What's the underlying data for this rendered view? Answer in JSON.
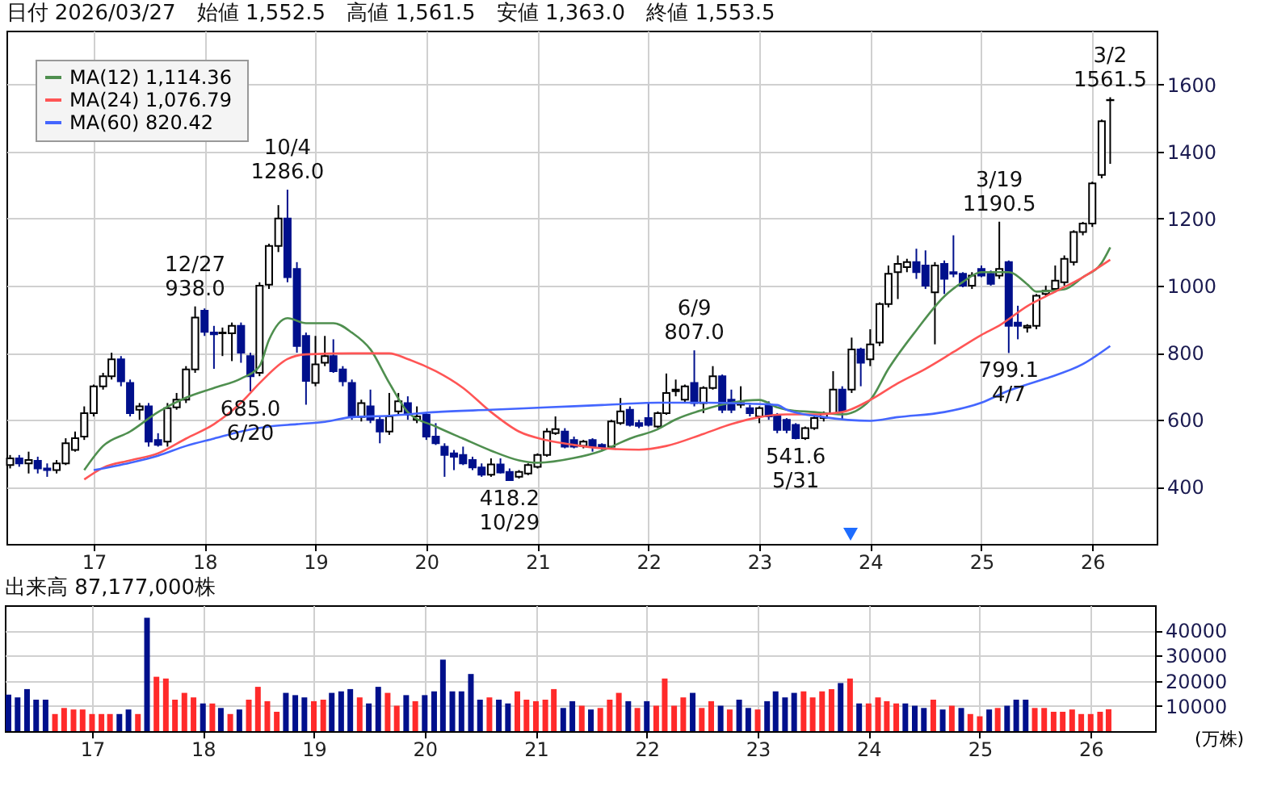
{
  "chart_data": [
    {
      "type": "candlestick",
      "title": "日付 2026/03/27　始値 1,552.5　高値 1,561.5　安値 1,363.0　終値 1,553.5",
      "x": [
        "2016-04",
        "2016-05",
        "2016-06",
        "2016-07",
        "2016-08",
        "2016-09",
        "2016-10",
        "2016-11",
        "2016-12",
        "2017-01",
        "2017-02",
        "2017-03",
        "2017-04",
        "2017-05",
        "2017-06",
        "2017-07",
        "2017-08",
        "2017-09",
        "2017-10",
        "2017-11",
        "2017-12",
        "2018-01",
        "2018-02",
        "2018-03",
        "2018-04",
        "2018-05",
        "2018-06",
        "2018-07",
        "2018-08",
        "2018-09",
        "2018-10",
        "2018-11",
        "2018-12",
        "2019-01",
        "2019-02",
        "2019-03",
        "2019-04",
        "2019-05",
        "2019-06",
        "2019-07",
        "2019-08",
        "2019-09",
        "2019-10",
        "2019-11",
        "2019-12",
        "2020-01",
        "2020-02",
        "2020-03",
        "2020-04",
        "2020-05",
        "2020-06",
        "2020-07",
        "2020-08",
        "2020-09",
        "2020-10",
        "2020-11",
        "2020-12",
        "2021-01",
        "2021-02",
        "2021-03",
        "2021-04",
        "2021-05",
        "2021-06",
        "2021-07",
        "2021-08",
        "2021-09",
        "2021-10",
        "2021-11",
        "2021-12",
        "2022-01",
        "2022-02",
        "2022-03",
        "2022-04",
        "2022-05",
        "2022-06",
        "2022-07",
        "2022-08",
        "2022-09",
        "2022-10",
        "2022-11",
        "2022-12",
        "2023-01",
        "2023-02",
        "2023-03",
        "2023-04",
        "2023-05",
        "2023-06",
        "2023-07",
        "2023-08",
        "2023-09",
        "2023-10",
        "2023-11",
        "2023-12",
        "2024-01",
        "2024-02",
        "2024-03",
        "2024-04",
        "2024-05",
        "2024-06",
        "2024-07",
        "2024-08",
        "2024-09",
        "2024-10",
        "2024-11",
        "2024-12",
        "2025-01",
        "2025-02",
        "2025-03",
        "2025-04",
        "2025-05",
        "2025-06",
        "2025-07",
        "2025-08",
        "2025-09",
        "2025-10",
        "2025-11",
        "2025-12",
        "2026-01",
        "2026-02",
        "2026-03"
      ],
      "ohlc": [
        [
          465,
          495,
          455,
          485
        ],
        [
          485,
          495,
          460,
          470
        ],
        [
          470,
          505,
          440,
          480
        ],
        [
          478,
          490,
          440,
          455
        ],
        [
          455,
          470,
          430,
          450
        ],
        [
          450,
          480,
          440,
          470
        ],
        [
          470,
          545,
          465,
          530
        ],
        [
          510,
          565,
          505,
          545
        ],
        [
          550,
          640,
          540,
          620
        ],
        [
          620,
          705,
          610,
          700
        ],
        [
          700,
          740,
          690,
          730
        ],
        [
          730,
          800,
          720,
          780
        ],
        [
          780,
          790,
          700,
          715
        ],
        [
          710,
          720,
          610,
          620
        ],
        [
          630,
          650,
          600,
          640
        ],
        [
          640,
          650,
          520,
          535
        ],
        [
          540,
          560,
          520,
          525
        ],
        [
          535,
          650,
          520,
          635
        ],
        [
          637,
          680,
          630,
          660
        ],
        [
          660,
          760,
          650,
          750
        ],
        [
          750,
          938.0,
          740,
          905
        ],
        [
          925,
          932,
          850,
          862
        ],
        [
          860,
          880,
          752,
          855
        ],
        [
          858,
          875,
          790,
          860
        ],
        [
          858,
          890,
          775,
          880
        ],
        [
          880,
          890,
          770,
          800
        ],
        [
          790,
          800,
          685.0,
          730
        ],
        [
          740,
          1010,
          730,
          1000
        ],
        [
          1003,
          1125,
          990,
          1118
        ],
        [
          1118,
          1240,
          1100,
          1200
        ],
        [
          1200,
          1286.0,
          1010,
          1025
        ],
        [
          1050,
          1070,
          800,
          820
        ],
        [
          850,
          860,
          645,
          716
        ],
        [
          710,
          850,
          700,
          765
        ],
        [
          770,
          850,
          760,
          790
        ],
        [
          790,
          840,
          740,
          745
        ],
        [
          750,
          760,
          700,
          715
        ],
        [
          710,
          720,
          600,
          610
        ],
        [
          608,
          660,
          595,
          650
        ],
        [
          640,
          690,
          590,
          600
        ],
        [
          600,
          610,
          530,
          565
        ],
        [
          565,
          680,
          555,
          610
        ],
        [
          625,
          680,
          615,
          655
        ],
        [
          650,
          670,
          600,
          615
        ],
        [
          600,
          640,
          590,
          610
        ],
        [
          615,
          620,
          540,
          550
        ],
        [
          550,
          590,
          525,
          530
        ],
        [
          520,
          530,
          430,
          495
        ],
        [
          500,
          510,
          450,
          490
        ],
        [
          495,
          520,
          465,
          470
        ],
        [
          480,
          490,
          450,
          458
        ],
        [
          458,
          470,
          430,
          436
        ],
        [
          436,
          485,
          430,
          467
        ],
        [
          467,
          485,
          440,
          443
        ],
        [
          445,
          455,
          418.2,
          420
        ],
        [
          430,
          450,
          425,
          445
        ],
        [
          440,
          470,
          435,
          465
        ],
        [
          460,
          500,
          455,
          495
        ],
        [
          495,
          575,
          490,
          565
        ],
        [
          560,
          610,
          555,
          572
        ],
        [
          565,
          575,
          515,
          520
        ],
        [
          540,
          550,
          515,
          520
        ],
        [
          522,
          540,
          515,
          535
        ],
        [
          540,
          545,
          505,
          520
        ],
        [
          525,
          530,
          510,
          517
        ],
        [
          520,
          600,
          515,
          595
        ],
        [
          590,
          665,
          585,
          625
        ],
        [
          630,
          640,
          580,
          585
        ],
        [
          590,
          600,
          575,
          582
        ],
        [
          605,
          650,
          580,
          585
        ],
        [
          580,
          625,
          575,
          620
        ],
        [
          620,
          738,
          615,
          680
        ],
        [
          685,
          720,
          670,
          690
        ],
        [
          660,
          705,
          650,
          700
        ],
        [
          710,
          807.0,
          640,
          650
        ],
        [
          650,
          700,
          620,
          695
        ],
        [
          695,
          760,
          690,
          730
        ],
        [
          730,
          735,
          620,
          630
        ],
        [
          660,
          690,
          620,
          630
        ],
        [
          645,
          700,
          635,
          650
        ],
        [
          635,
          645,
          610,
          620
        ],
        [
          610,
          640,
          590,
          635
        ],
        [
          645,
          655,
          600,
          610
        ],
        [
          615,
          620,
          560,
          570
        ],
        [
          600,
          605,
          560,
          570
        ],
        [
          585,
          590,
          541.6,
          545
        ],
        [
          545,
          580,
          540,
          575
        ],
        [
          575,
          610,
          570,
          605
        ],
        [
          605,
          625,
          595,
          620
        ],
        [
          620,
          745,
          615,
          690
        ],
        [
          690,
          700,
          600,
          625
        ],
        [
          690,
          845,
          680,
          810
        ],
        [
          810,
          815,
          700,
          770
        ],
        [
          780,
          870,
          760,
          825
        ],
        [
          830,
          950,
          820,
          945
        ],
        [
          945,
          1060,
          935,
          1035
        ],
        [
          1040,
          1090,
          960,
          1065
        ],
        [
          1055,
          1080,
          1040,
          1070
        ],
        [
          1070,
          1110,
          1020,
          1040
        ],
        [
          1060,
          1105,
          990,
          1000
        ],
        [
          980,
          1070,
          825,
          1060
        ],
        [
          1065,
          1075,
          975,
          1020
        ],
        [
          1040,
          1150,
          1025,
          1035
        ],
        [
          1035,
          1040,
          995,
          1000
        ],
        [
          1000,
          1040,
          990,
          1030
        ],
        [
          1050,
          1060,
          1025,
          1030
        ],
        [
          1035,
          1045,
          1000,
          1005
        ],
        [
          1030,
          1190.5,
          1020,
          1050
        ],
        [
          1070,
          1075,
          799.1,
          880
        ],
        [
          890,
          940,
          840,
          880
        ],
        [
          875,
          885,
          860,
          880
        ],
        [
          880,
          975,
          870,
          970
        ],
        [
          975,
          1000,
          970,
          985
        ],
        [
          990,
          1060,
          980,
          1015
        ],
        [
          1010,
          1090,
          1000,
          1080
        ],
        [
          1070,
          1165,
          1060,
          1160
        ],
        [
          1160,
          1190,
          1150,
          1185
        ],
        [
          1185,
          1310,
          1175,
          1305
        ],
        [
          1330,
          1495,
          1320,
          1490
        ],
        [
          1552.5,
          1561.5,
          1363.0,
          1553.5
        ]
      ],
      "series": [
        {
          "type": "line",
          "name": "MA(12)  1,114.36",
          "color": "#4f8f4f",
          "x": [
            "2016-12",
            "2017-02",
            "2017-05",
            "2017-08",
            "2017-11",
            "2018-02",
            "2018-05",
            "2018-07",
            "2018-08",
            "2018-10",
            "2018-12",
            "2019-03",
            "2019-05",
            "2019-07",
            "2019-09",
            "2019-11",
            "2020-02",
            "2020-05",
            "2020-08",
            "2020-11",
            "2021-01",
            "2021-05",
            "2021-08",
            "2021-11",
            "2022-02",
            "2022-04",
            "2022-07",
            "2022-10",
            "2023-01",
            "2023-03",
            "2023-04",
            "2023-07",
            "2023-10",
            "2024-01",
            "2024-03",
            "2024-06",
            "2024-09",
            "2024-11",
            "2025-01",
            "2025-04",
            "2025-06",
            "2025-07",
            "2025-10",
            "2025-12",
            "2026-02",
            "2026-03"
          ],
          "values": [
            450,
            522,
            565,
            623,
            666,
            695,
            723,
            760,
            838,
            903,
            888,
            888,
            860,
            810,
            710,
            623,
            580,
            544,
            508,
            479,
            472,
            486,
            508,
            544,
            572,
            601,
            630,
            651,
            659,
            637,
            630,
            623,
            616,
            659,
            752,
            867,
            968,
            1011,
            1040,
            1040,
            1004,
            982,
            989,
            1025,
            1068,
            1114
          ]
        },
        {
          "type": "line",
          "name": "MA(24)  1,076.79",
          "color": "#ff5555",
          "x": [
            "2016-12",
            "2017-02",
            "2017-05",
            "2017-08",
            "2017-11",
            "2018-02",
            "2018-05",
            "2018-07",
            "2018-10",
            "2018-12",
            "2019-05",
            "2019-09",
            "2019-11",
            "2020-02",
            "2020-05",
            "2020-08",
            "2020-11",
            "2021-02",
            "2021-05",
            "2021-08",
            "2021-12",
            "2022-03",
            "2022-07",
            "2022-10",
            "2023-01",
            "2023-04",
            "2023-07",
            "2023-10",
            "2024-01",
            "2024-04",
            "2024-07",
            "2024-10",
            "2025-01",
            "2025-03",
            "2025-06",
            "2025-09",
            "2025-12",
            "2026-03"
          ],
          "values": [
            422,
            457,
            479,
            500,
            544,
            587,
            651,
            709,
            781,
            795,
            798,
            798,
            781,
            745,
            695,
            623,
            565,
            539,
            525,
            515,
            511,
            522,
            558,
            587,
            608,
            616,
            616,
            623,
            659,
            709,
            752,
            802,
            853,
            881,
            939,
            982,
            1025,
            1077
          ]
        },
        {
          "type": "line",
          "name": "MA(60)  820.42",
          "color": "#4466ff",
          "x": [
            "2017-01",
            "2017-05",
            "2017-08",
            "2017-11",
            "2018-02",
            "2018-05",
            "2018-08",
            "2018-11",
            "2019-02",
            "2019-05",
            "2019-09",
            "2020-02",
            "2020-08",
            "2021-02",
            "2021-08",
            "2022-02",
            "2022-07",
            "2022-12",
            "2023-03",
            "2023-04",
            "2023-08",
            "2024-01",
            "2024-04",
            "2024-09",
            "2025-01",
            "2025-04",
            "2025-08",
            "2025-12",
            "2026-03"
          ],
          "values": [
            450,
            472,
            493,
            522,
            544,
            565,
            580,
            587,
            594,
            608,
            612,
            623,
            630,
            637,
            644,
            651,
            651,
            648,
            644,
            630,
            608,
            597,
            608,
            623,
            651,
            687,
            723,
            766,
            820
          ]
        }
      ],
      "xlim": [
        "2016-03-20",
        "2026-08-01"
      ],
      "xticks": [
        {
          "value": "2017-01",
          "label": "17"
        },
        {
          "value": "2018-01",
          "label": "18"
        },
        {
          "value": "2019-01",
          "label": "19"
        },
        {
          "value": "2020-01",
          "label": "20"
        },
        {
          "value": "2021-01",
          "label": "21"
        },
        {
          "value": "2022-01",
          "label": "22"
        },
        {
          "value": "2023-01",
          "label": "23"
        },
        {
          "value": "2024-01",
          "label": "24"
        },
        {
          "value": "2025-01",
          "label": "25"
        },
        {
          "value": "2026-01",
          "label": "26"
        }
      ],
      "ylim": [
        230,
        1760
      ],
      "yticks": [
        400,
        600,
        800,
        1000,
        1200,
        1400,
        1600
      ],
      "grid": true,
      "legend": "top left",
      "annotations": [
        {
          "text": "12/27",
          "x": "2017-12",
          "y": 938.0
        },
        {
          "text": "938.0",
          "x": "2017-12",
          "y": 938.0
        },
        {
          "text": "10/4",
          "x": "2018-10",
          "y": 1286.0
        },
        {
          "text": "1286.0",
          "x": "2018-10",
          "y": 1286.0
        },
        {
          "text": "685.0",
          "x": "2018-06",
          "y": 685.0
        },
        {
          "text": "6/20",
          "x": "2018-06",
          "y": 685.0
        },
        {
          "text": "418.2",
          "x": "2020-10",
          "y": 418.2
        },
        {
          "text": "10/29",
          "x": "2020-10",
          "y": 418.2
        },
        {
          "text": "6/9",
          "x": "2022-06",
          "y": 807.0
        },
        {
          "text": "807.0",
          "x": "2022-06",
          "y": 807.0
        },
        {
          "text": "541.6",
          "x": "2023-05",
          "y": 541.6
        },
        {
          "text": "5/31",
          "x": "2023-05",
          "y": 541.6
        },
        {
          "text": "3/19",
          "x": "2025-03",
          "y": 1190.5
        },
        {
          "text": "1190.5",
          "x": "2025-03",
          "y": 1190.5
        },
        {
          "text": "799.1",
          "x": "2025-04",
          "y": 799.1
        },
        {
          "text": "4/7",
          "x": "2025-04",
          "y": 799.1
        },
        {
          "text": "3/2",
          "x": "2026-03",
          "y": 1561.5
        },
        {
          "text": "1561.5",
          "x": "2026-03",
          "y": 1561.5
        }
      ]
    },
    {
      "type": "bar",
      "title": "出来高 87,177,000株",
      "ylabel": "(万株)",
      "x": [
        "2016-04",
        "2016-05",
        "2016-06",
        "2016-07",
        "2016-08",
        "2016-09",
        "2016-10",
        "2016-11",
        "2016-12",
        "2017-01",
        "2017-02",
        "2017-03",
        "2017-04",
        "2017-05",
        "2017-06",
        "2017-07",
        "2017-08",
        "2017-09",
        "2017-10",
        "2017-11",
        "2017-12",
        "2018-01",
        "2018-02",
        "2018-03",
        "2018-04",
        "2018-05",
        "2018-06",
        "2018-07",
        "2018-08",
        "2018-09",
        "2018-10",
        "2018-11",
        "2018-12",
        "2019-01",
        "2019-02",
        "2019-03",
        "2019-04",
        "2019-05",
        "2019-06",
        "2019-07",
        "2019-08",
        "2019-09",
        "2019-10",
        "2019-11",
        "2019-12",
        "2020-01",
        "2020-02",
        "2020-03",
        "2020-04",
        "2020-05",
        "2020-06",
        "2020-07",
        "2020-08",
        "2020-09",
        "2020-10",
        "2020-11",
        "2020-12",
        "2021-01",
        "2021-02",
        "2021-03",
        "2021-04",
        "2021-05",
        "2021-06",
        "2021-07",
        "2021-08",
        "2021-09",
        "2021-10",
        "2021-11",
        "2021-12",
        "2022-01",
        "2022-02",
        "2022-03",
        "2022-04",
        "2022-05",
        "2022-06",
        "2022-07",
        "2022-08",
        "2022-09",
        "2022-10",
        "2022-11",
        "2022-12",
        "2023-01",
        "2023-02",
        "2023-03",
        "2023-04",
        "2023-05",
        "2023-06",
        "2023-07",
        "2023-08",
        "2023-09",
        "2023-10",
        "2023-11",
        "2023-12",
        "2024-01",
        "2024-02",
        "2024-03",
        "2024-04",
        "2024-05",
        "2024-06",
        "2024-07",
        "2024-08",
        "2024-09",
        "2024-10",
        "2024-11",
        "2024-12",
        "2025-01",
        "2025-02",
        "2025-03",
        "2025-04",
        "2025-05",
        "2025-06",
        "2025-07",
        "2025-08",
        "2025-09",
        "2025-10",
        "2025-11",
        "2025-12",
        "2026-01",
        "2026-02",
        "2026-03"
      ],
      "values": [
        14500,
        13400,
        16700,
        12500,
        12500,
        6800,
        9200,
        8600,
        8600,
        6800,
        6800,
        6800,
        6800,
        8600,
        6800,
        45000,
        21600,
        20900,
        12500,
        15200,
        13400,
        11000,
        11000,
        9200,
        6800,
        8600,
        12500,
        17600,
        11900,
        7700,
        15200,
        14300,
        13400,
        11900,
        12500,
        15200,
        15800,
        16700,
        13400,
        11000,
        17600,
        15200,
        10100,
        14300,
        11900,
        14300,
        15800,
        28400,
        15800,
        15800,
        22700,
        12500,
        13400,
        12500,
        11000,
        15800,
        12500,
        11900,
        12500,
        16700,
        9200,
        11900,
        10100,
        8600,
        9200,
        12500,
        15200,
        11900,
        9200,
        11900,
        10100,
        20900,
        10100,
        13400,
        15200,
        9200,
        11900,
        10100,
        8600,
        12500,
        9200,
        8600,
        11900,
        15800,
        13400,
        15200,
        15800,
        13400,
        15800,
        16700,
        19100,
        20900,
        11000,
        11000,
        13400,
        11900,
        11000,
        11000,
        10100,
        9200,
        12500,
        8600,
        10100,
        9200,
        6800,
        5900,
        8600,
        9200,
        10100,
        12500,
        12500,
        9200,
        9200,
        7700,
        7700,
        8600,
        6800,
        6800,
        7700,
        8700
      ],
      "colors": [
        "#00108c",
        "#00108c",
        "#00108c",
        "#00108c",
        "#00108c",
        "#ff2a2a",
        "#ff2a2a",
        "#ff2a2a",
        "#ff2a2a",
        "#ff2a2a",
        "#ff2a2a",
        "#ff2a2a",
        "#00108c",
        "#00108c",
        "#ff2a2a",
        "#00108c",
        "#ff2a2a",
        "#ff2a2a",
        "#ff2a2a",
        "#ff2a2a",
        "#ff2a2a",
        "#00108c",
        "#ff2a2a",
        "#00108c",
        "#ff2a2a",
        "#00108c",
        "#ff2a2a",
        "#ff2a2a",
        "#ff2a2a",
        "#ff2a2a",
        "#00108c",
        "#00108c",
        "#00108c",
        "#ff2a2a",
        "#ff2a2a",
        "#00108c",
        "#00108c",
        "#00108c",
        "#ff2a2a",
        "#00108c",
        "#00108c",
        "#ff2a2a",
        "#ff2a2a",
        "#00108c",
        "#ff2a2a",
        "#00108c",
        "#00108c",
        "#00108c",
        "#00108c",
        "#00108c",
        "#00108c",
        "#00108c",
        "#ff2a2a",
        "#00108c",
        "#00108c",
        "#ff2a2a",
        "#ff2a2a",
        "#ff2a2a",
        "#ff2a2a",
        "#ff2a2a",
        "#00108c",
        "#00108c",
        "#ff2a2a",
        "#00108c",
        "#ff2a2a",
        "#ff2a2a",
        "#ff2a2a",
        "#00108c",
        "#ff2a2a",
        "#00108c",
        "#ff2a2a",
        "#ff2a2a",
        "#ff2a2a",
        "#ff2a2a",
        "#00108c",
        "#ff2a2a",
        "#ff2a2a",
        "#00108c",
        "#ff2a2a",
        "#00108c",
        "#00108c",
        "#ff2a2a",
        "#00108c",
        "#00108c",
        "#00108c",
        "#00108c",
        "#ff2a2a",
        "#ff2a2a",
        "#ff2a2a",
        "#ff2a2a",
        "#00108c",
        "#ff2a2a",
        "#00108c",
        "#ff2a2a",
        "#ff2a2a",
        "#ff2a2a",
        "#ff2a2a",
        "#00108c",
        "#00108c",
        "#00108c",
        "#ff2a2a",
        "#00108c",
        "#ff2a2a",
        "#00108c",
        "#ff2a2a",
        "#ff2a2a",
        "#00108c",
        "#ff2a2a",
        "#00108c",
        "#00108c",
        "#00108c",
        "#ff2a2a",
        "#ff2a2a",
        "#ff2a2a",
        "#ff2a2a",
        "#ff2a2a",
        "#ff2a2a",
        "#ff2a2a",
        "#ff2a2a",
        "#ff2a2a"
      ],
      "xlim": [
        "2016-03-20",
        "2026-08-01"
      ],
      "xticks": [
        {
          "value": "2017-01",
          "label": "17"
        },
        {
          "value": "2018-01",
          "label": "18"
        },
        {
          "value": "2019-01",
          "label": "19"
        },
        {
          "value": "2020-01",
          "label": "20"
        },
        {
          "value": "2021-01",
          "label": "21"
        },
        {
          "value": "2022-01",
          "label": "22"
        },
        {
          "value": "2023-01",
          "label": "23"
        },
        {
          "value": "2024-01",
          "label": "24"
        },
        {
          "value": "2025-01",
          "label": "25"
        },
        {
          "value": "2026-01",
          "label": "26"
        }
      ],
      "ylim": [
        0,
        50000
      ],
      "yticks": [
        10000,
        20000,
        30000,
        40000
      ],
      "grid": true
    }
  ]
}
